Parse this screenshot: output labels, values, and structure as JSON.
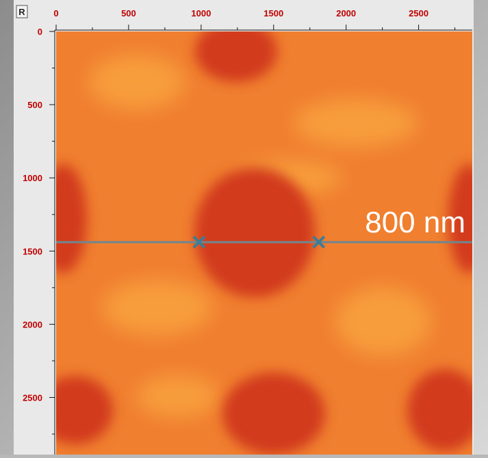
{
  "corner_button": "R",
  "x_axis": {
    "lim": [
      0,
      2870
    ],
    "ticks": [
      0,
      500,
      1000,
      1500,
      2000,
      2500
    ],
    "minor_ticks": [
      250,
      750,
      1250,
      1750,
      2250,
      2750
    ]
  },
  "y_axis": {
    "lim": [
      0,
      2890
    ],
    "ticks": [
      0,
      500,
      1000,
      1500,
      2000,
      2500
    ],
    "minor_ticks": [
      250,
      750,
      1250,
      1750,
      2250,
      2750
    ]
  },
  "profile": {
    "y": 1439,
    "cursors_x": [
      986,
      1811
    ]
  },
  "annotation": "800 nm"
}
